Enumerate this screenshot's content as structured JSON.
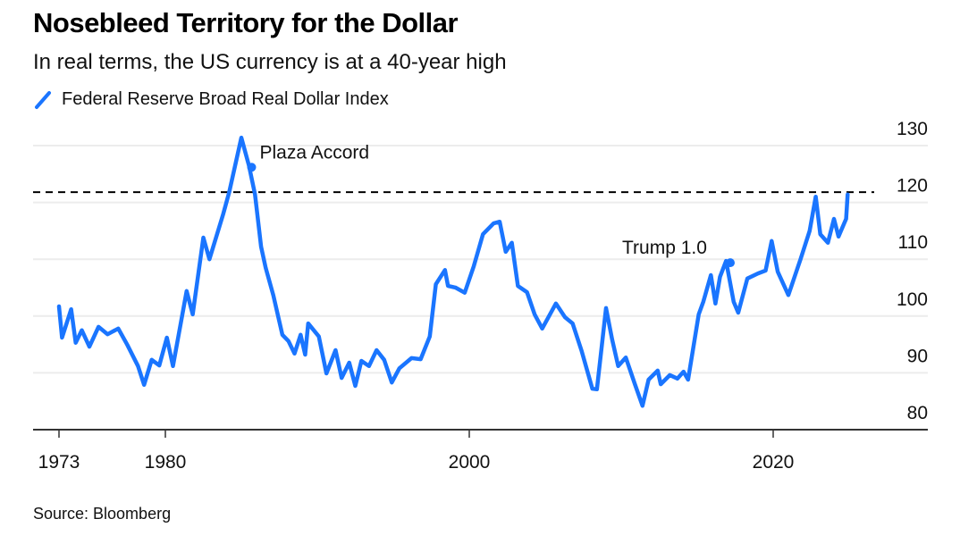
{
  "chart_data": {
    "type": "line",
    "title": "Nosebleed Territory for the Dollar",
    "subtitle": "In real terms, the US currency is at a 40-year high",
    "source": "Source: Bloomberg",
    "xlabel": "",
    "ylabel": "",
    "xlim": [
      1972.5,
      2027.0
    ],
    "ylim": [
      80,
      130
    ],
    "yticks": [
      80,
      90,
      100,
      110,
      120,
      130
    ],
    "xticks": [
      1973,
      1980,
      2000,
      2020
    ],
    "grid": true,
    "y_axis_side": "right",
    "legend": {
      "placement": "top-left",
      "entries": [
        "Federal Reserve Broad Real Dollar Index"
      ]
    },
    "reference_line": {
      "value": 121.8,
      "style": "dashed",
      "color": "#000000"
    },
    "series": [
      {
        "name": "Federal Reserve Broad Real Dollar Index",
        "color": "#1a75ff",
        "x": [
          1973.0,
          1973.2,
          1973.8,
          1974.1,
          1974.5,
          1975.0,
          1975.6,
          1976.2,
          1976.9,
          1977.5,
          1978.2,
          1978.6,
          1979.1,
          1979.6,
          1980.1,
          1980.5,
          1981.4,
          1981.8,
          1982.5,
          1982.9,
          1983.8,
          1984.2,
          1985.0,
          1985.5,
          1985.9,
          1986.3,
          1986.6,
          1987.1,
          1987.7,
          1988.1,
          1988.5,
          1988.9,
          1989.2,
          1989.4,
          1990.1,
          1990.6,
          1991.2,
          1991.6,
          1992.1,
          1992.5,
          1992.9,
          1993.4,
          1993.9,
          1994.4,
          1994.9,
          1995.4,
          1996.2,
          1996.8,
          1997.4,
          1997.8,
          1998.4,
          1998.6,
          1999.1,
          1999.7,
          2000.3,
          2000.9,
          2001.6,
          2002.0,
          2002.4,
          2002.8,
          2003.2,
          2003.8,
          2004.3,
          2004.8,
          2005.7,
          2006.3,
          2006.8,
          2007.4,
          2008.1,
          2008.4,
          2009.0,
          2009.4,
          2009.8,
          2010.3,
          2010.9,
          2011.4,
          2011.8,
          2012.4,
          2012.6,
          2013.2,
          2013.7,
          2014.1,
          2014.4,
          2015.1,
          2015.4,
          2015.9,
          2016.2,
          2016.5,
          2016.9,
          2017.4,
          2017.7,
          2018.3,
          2019.0,
          2019.5,
          2019.9,
          2020.3,
          2021.0,
          2021.8,
          2022.4,
          2022.8,
          2023.1,
          2023.6,
          2024.0,
          2024.3,
          2024.8,
          2024.9
        ],
        "values": [
          101.7,
          96.2,
          101.2,
          95.3,
          97.5,
          94.6,
          98.1,
          96.8,
          97.8,
          94.9,
          91.2,
          87.9,
          92.3,
          91.3,
          96.2,
          91.2,
          104.4,
          100.3,
          113.8,
          110.0,
          117.9,
          121.8,
          131.4,
          126.5,
          121.4,
          112.2,
          108.5,
          103.7,
          96.7,
          95.6,
          93.4,
          96.7,
          93.2,
          98.7,
          96.4,
          89.9,
          94.0,
          89.1,
          91.8,
          87.7,
          92.1,
          91.2,
          94.0,
          92.3,
          88.3,
          90.8,
          92.6,
          92.4,
          96.4,
          105.6,
          108.1,
          105.3,
          105.0,
          104.1,
          108.8,
          114.4,
          116.3,
          116.6,
          111.3,
          112.9,
          105.3,
          104.2,
          100.3,
          97.8,
          102.2,
          99.8,
          98.7,
          93.8,
          87.2,
          87.1,
          101.4,
          95.9,
          91.2,
          92.7,
          88.0,
          84.2,
          88.8,
          90.4,
          88.0,
          89.6,
          89.0,
          90.2,
          88.8,
          100.3,
          102.5,
          107.2,
          102.2,
          106.9,
          109.7,
          102.5,
          100.6,
          106.6,
          107.5,
          108.0,
          113.2,
          107.8,
          103.7,
          110.0,
          115.0,
          121.0,
          114.4,
          112.9,
          117.1,
          114.0,
          117.1,
          121.4
        ]
      }
    ],
    "annotations": [
      {
        "text": "Plaza Accord",
        "x": 1985.5,
        "y": 126.5
      },
      {
        "text": "Trump 1.0",
        "x": 2017.0,
        "y": 109.7
      }
    ]
  }
}
